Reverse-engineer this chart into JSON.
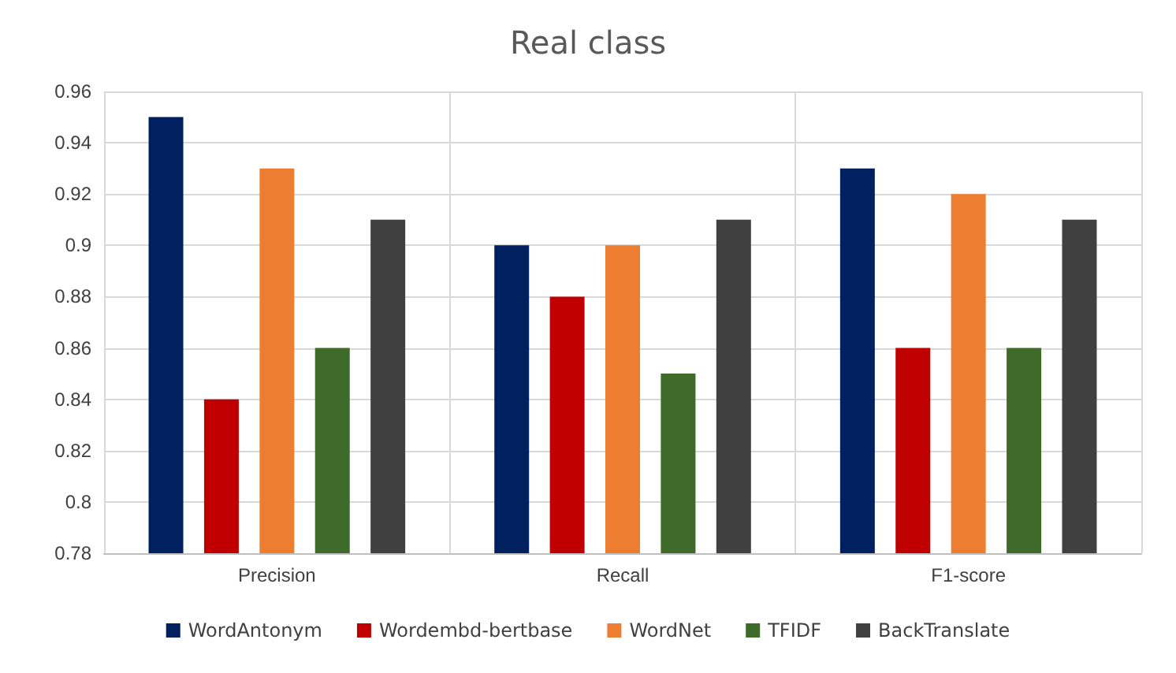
{
  "chart_data": {
    "type": "bar",
    "title": "Real class",
    "categories": [
      "Precision",
      "Recall",
      "F1-score"
    ],
    "series": [
      {
        "name": "WordAntonym",
        "color": "#002060",
        "values": [
          0.95,
          0.9,
          0.93
        ]
      },
      {
        "name": "Wordembd-bertbase",
        "color": "#c00000",
        "values": [
          0.84,
          0.88,
          0.86
        ]
      },
      {
        "name": "WordNet",
        "color": "#ed7d31",
        "values": [
          0.93,
          0.9,
          0.92
        ]
      },
      {
        "name": "TFIDF",
        "color": "#3e6b2a",
        "values": [
          0.86,
          0.85,
          0.86
        ]
      },
      {
        "name": "BackTranslate",
        "color": "#404040",
        "values": [
          0.91,
          0.91,
          0.91
        ]
      }
    ],
    "ylim": [
      0.78,
      0.96
    ],
    "yticks": [
      0.78,
      0.8,
      0.82,
      0.84,
      0.86,
      0.88,
      0.9,
      0.92,
      0.94,
      0.96
    ],
    "grid": true,
    "legend": "bottom"
  }
}
